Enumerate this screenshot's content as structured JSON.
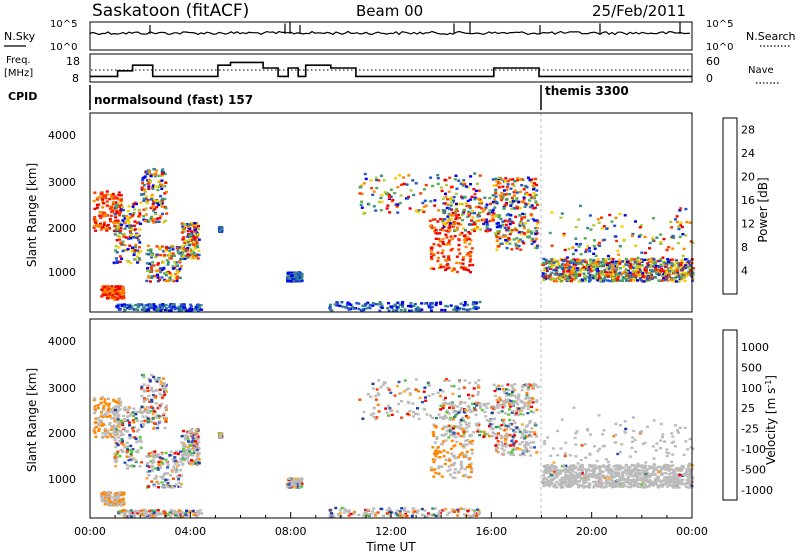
{
  "header": {
    "station": "Saskatoon (fitACF)",
    "beam": "Beam 00",
    "date": "25/Feb/2011"
  },
  "noise_panel": {
    "left_label": "N.Sky",
    "right_label": "N.Search",
    "left_ticks": [
      "10^5",
      "10^0"
    ],
    "right_ticks": [
      "10^5",
      "10^0"
    ]
  },
  "freq_panel": {
    "left_label_1": "Freq.",
    "left_label_2": "[MHz]",
    "right_label": "Nave",
    "left_ticks": [
      "18",
      "8"
    ],
    "right_ticks": [
      "60",
      "0"
    ]
  },
  "cpid": {
    "label": "CPID",
    "modes": [
      "normalsound (fast) 157",
      "themis 3300"
    ]
  },
  "colors": {
    "power_scale": [
      "#0000ee",
      "#2255cc",
      "#3a8a8a",
      "#55aa55",
      "#aacc33",
      "#ffcc00",
      "#ff8800",
      "#ff3300",
      "#ee0000"
    ],
    "velocity_scale": [
      "#ee0000",
      "#ff4400",
      "#ff8800",
      "#ffaa33",
      "#bbbbbb",
      "#bbbbbb",
      "#55cc33",
      "#2c8a6a",
      "#3355bb",
      "#1a3aaa"
    ],
    "ground_scatter": "#bbbbbb"
  },
  "chart_data": [
    {
      "type": "heatmap",
      "title": "",
      "xlabel": "Time UT",
      "ylabel": "Slant Range [km]",
      "x_ticks": [
        "00:00",
        "04:00",
        "08:00",
        "12:00",
        "16:00",
        "20:00",
        "00:00"
      ],
      "xlim_hours": [
        0,
        24
      ],
      "ylim": [
        200,
        4600
      ],
      "y_ticks": [
        1000,
        2000,
        3000,
        4000
      ],
      "colorbar": {
        "label": "Power [dB]",
        "ticks": [
          4,
          8,
          12,
          16,
          20,
          24,
          28
        ],
        "range": [
          0,
          30
        ]
      }
    },
    {
      "type": "heatmap",
      "title": "",
      "xlabel": "Time UT",
      "ylabel": "Slant Range [km]",
      "x_ticks": [
        "00:00",
        "04:00",
        "08:00",
        "12:00",
        "16:00",
        "20:00",
        "00:00"
      ],
      "xlim_hours": [
        0,
        24
      ],
      "ylim": [
        200,
        4600
      ],
      "y_ticks": [
        1000,
        2000,
        3000,
        4000
      ],
      "colorbar": {
        "label": "Velocity [m s^-1]",
        "ticks": [
          "1000",
          "500",
          "100",
          "25",
          "-25",
          "-100",
          "-500",
          "-1000"
        ]
      }
    }
  ]
}
